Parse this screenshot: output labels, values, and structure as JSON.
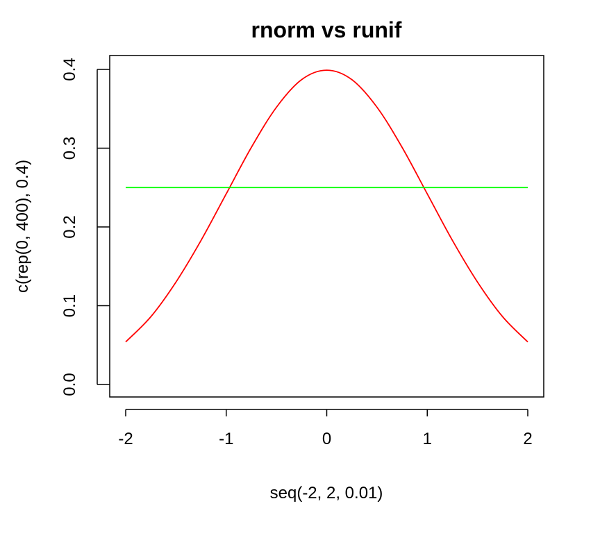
{
  "chart_data": {
    "type": "line",
    "title": "rnorm vs runif",
    "xlabel": "seq(-2, 2, 0.01)",
    "ylabel": "c(rep(0, 400), 0.4)",
    "xlim": [
      -2,
      2
    ],
    "ylim": [
      0,
      0.4
    ],
    "x_ticks": [
      -2,
      -1,
      0,
      1,
      2
    ],
    "x_tick_labels": [
      "-2",
      "-1",
      "0",
      "1",
      "2"
    ],
    "y_ticks": [
      0,
      0.1,
      0.2,
      0.3,
      0.4
    ],
    "y_tick_labels": [
      "0.0",
      "0.1",
      "0.2",
      "0.3",
      "0.4"
    ],
    "grid": false,
    "x": [
      -2.0,
      -1.75,
      -1.5,
      -1.25,
      -1.0,
      -0.75,
      -0.5,
      -0.25,
      0.0,
      0.25,
      0.5,
      0.75,
      1.0,
      1.25,
      1.5,
      1.75,
      2.0
    ],
    "series": [
      {
        "color": "#ff0000",
        "values": [
          0.054,
          0.086,
          0.13,
          0.183,
          0.242,
          0.301,
          0.352,
          0.387,
          0.399,
          0.387,
          0.352,
          0.301,
          0.242,
          0.183,
          0.13,
          0.086,
          0.054
        ]
      },
      {
        "color": "#00ff00",
        "values": [
          0.25,
          0.25,
          0.25,
          0.25,
          0.25,
          0.25,
          0.25,
          0.25,
          0.25,
          0.25,
          0.25,
          0.25,
          0.25,
          0.25,
          0.25,
          0.25,
          0.25
        ]
      }
    ]
  }
}
